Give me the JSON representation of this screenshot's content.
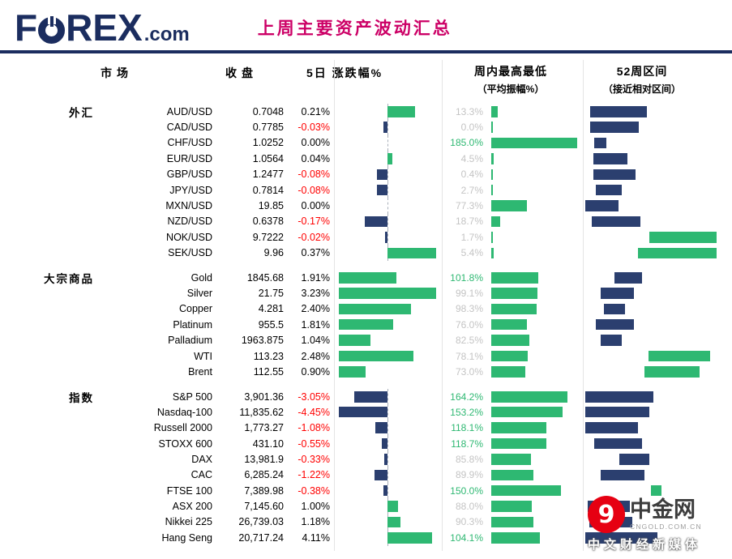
{
  "header": {
    "logo": {
      "f": "F",
      "rex": "REX",
      "com": ".com"
    },
    "title": "上周主要资产波动汇总"
  },
  "columns": {
    "market": "市场",
    "close": "收盘",
    "change": "5日 涨跌幅%",
    "week": "周内最高最低",
    "week_sub": "（平均振幅%）",
    "range52": "52周区间",
    "range52_sub": "（接近相对区间）"
  },
  "colors": {
    "navy": "#2b3f6f",
    "green": "#2eb872",
    "red": "#ff0000",
    "muted_label": "#c4c4c4",
    "title_pink": "#cc0066",
    "logo_navy": "#1b2d5f",
    "watermark_red": "#e60012"
  },
  "chart_data": {
    "type": "table",
    "title": "上周主要资产波动汇总",
    "layout": "data bars: 5-day change (green positive / navy negative, scaled to each group's max), weekly amplitude green bars scaled to axis max, 52-week range bars positioned as fraction of column",
    "week_amplitude_axis_max": 185,
    "groups": [
      {
        "label": "外汇",
        "rows": [
          {
            "market": "AUD/USD",
            "close": "0.7048",
            "change_pct": 0.21,
            "week_amplitude_pct": 13.3,
            "range52_from": 0.04,
            "range52_to": 0.47,
            "range52_color": "navy"
          },
          {
            "market": "CAD/USD",
            "close": "0.7785",
            "change_pct": -0.03,
            "week_amplitude_pct": 0.0,
            "range52_from": 0.04,
            "range52_to": 0.41,
            "range52_color": "navy"
          },
          {
            "market": "CHF/USD",
            "close": "1.0252",
            "change_pct": 0.0,
            "week_amplitude_pct": 185.0,
            "range52_from": 0.07,
            "range52_to": 0.16,
            "range52_color": "navy"
          },
          {
            "market": "EUR/USD",
            "close": "1.0564",
            "change_pct": 0.04,
            "week_amplitude_pct": 4.5,
            "range52_from": 0.06,
            "range52_to": 0.32,
            "range52_color": "navy"
          },
          {
            "market": "GBP/USD",
            "close": "1.2477",
            "change_pct": -0.08,
            "week_amplitude_pct": 0.4,
            "range52_from": 0.06,
            "range52_to": 0.38,
            "range52_color": "navy"
          },
          {
            "market": "JPY/USD",
            "close": "0.7814",
            "change_pct": -0.08,
            "week_amplitude_pct": 2.7,
            "range52_from": 0.08,
            "range52_to": 0.28,
            "range52_color": "navy"
          },
          {
            "market": "MXN/USD",
            "close": "19.85",
            "change_pct": 0.0,
            "week_amplitude_pct": 77.3,
            "range52_from": 0.0,
            "range52_to": 0.25,
            "range52_color": "navy"
          },
          {
            "market": "NZD/USD",
            "close": "0.6378",
            "change_pct": -0.17,
            "week_amplitude_pct": 18.7,
            "range52_from": 0.05,
            "range52_to": 0.42,
            "range52_color": "navy"
          },
          {
            "market": "NOK/USD",
            "close": "9.7222",
            "change_pct": -0.02,
            "week_amplitude_pct": 1.7,
            "range52_from": 0.49,
            "range52_to": 1.0,
            "range52_color": "green"
          },
          {
            "market": "SEK/USD",
            "close": "9.96",
            "change_pct": 0.37,
            "week_amplitude_pct": 5.4,
            "range52_from": 0.4,
            "range52_to": 1.0,
            "range52_color": "green"
          }
        ]
      },
      {
        "label": "大宗商品",
        "rows": [
          {
            "market": "Gold",
            "close": "1845.68",
            "change_pct": 1.91,
            "week_amplitude_pct": 101.8,
            "range52_from": 0.22,
            "range52_to": 0.43,
            "range52_color": "navy"
          },
          {
            "market": "Silver",
            "close": "21.75",
            "change_pct": 3.23,
            "week_amplitude_pct": 99.1,
            "range52_from": 0.12,
            "range52_to": 0.37,
            "range52_color": "navy"
          },
          {
            "market": "Copper",
            "close": "4.281",
            "change_pct": 2.4,
            "week_amplitude_pct": 98.3,
            "range52_from": 0.14,
            "range52_to": 0.3,
            "range52_color": "navy"
          },
          {
            "market": "Platinum",
            "close": "955.5",
            "change_pct": 1.81,
            "week_amplitude_pct": 76.0,
            "range52_from": 0.08,
            "range52_to": 0.37,
            "range52_color": "navy"
          },
          {
            "market": "Palladium",
            "close": "1963.875",
            "change_pct": 1.04,
            "week_amplitude_pct": 82.5,
            "range52_from": 0.12,
            "range52_to": 0.28,
            "range52_color": "navy"
          },
          {
            "market": "WTI",
            "close": "113.23",
            "change_pct": 2.48,
            "week_amplitude_pct": 78.1,
            "range52_from": 0.48,
            "range52_to": 0.95,
            "range52_color": "green"
          },
          {
            "market": "Brent",
            "close": "112.55",
            "change_pct": 0.9,
            "week_amplitude_pct": 73.0,
            "range52_from": 0.45,
            "range52_to": 0.87,
            "range52_color": "green"
          }
        ]
      },
      {
        "label": "指数",
        "rows": [
          {
            "market": "S&P 500",
            "close": "3,901.36",
            "change_pct": -3.05,
            "week_amplitude_pct": 164.2,
            "range52_from": 0.0,
            "range52_to": 0.52,
            "range52_color": "navy"
          },
          {
            "market": "Nasdaq-100",
            "close": "11,835.62",
            "change_pct": -4.45,
            "week_amplitude_pct": 153.2,
            "range52_from": 0.0,
            "range52_to": 0.49,
            "range52_color": "navy"
          },
          {
            "market": "Russell 2000",
            "close": "1,773.27",
            "change_pct": -1.08,
            "week_amplitude_pct": 118.1,
            "range52_from": 0.0,
            "range52_to": 0.4,
            "range52_color": "navy"
          },
          {
            "market": "STOXX 600",
            "close": "431.10",
            "change_pct": -0.55,
            "week_amplitude_pct": 118.7,
            "range52_from": 0.07,
            "range52_to": 0.43,
            "range52_color": "navy"
          },
          {
            "market": "DAX",
            "close": "13,981.9",
            "change_pct": -0.33,
            "week_amplitude_pct": 85.8,
            "range52_from": 0.26,
            "range52_to": 0.49,
            "range52_color": "navy"
          },
          {
            "market": "CAC",
            "close": "6,285.24",
            "change_pct": -1.22,
            "week_amplitude_pct": 89.9,
            "range52_from": 0.12,
            "range52_to": 0.45,
            "range52_color": "navy"
          },
          {
            "market": "FTSE 100",
            "close": "7,389.98",
            "change_pct": -0.38,
            "week_amplitude_pct": 150.0,
            "range52_from": 0.5,
            "range52_to": 0.58,
            "range52_color": "green"
          },
          {
            "market": "ASX 200",
            "close": "7,145.60",
            "change_pct": 1.0,
            "week_amplitude_pct": 88.0,
            "range52_from": 0.02,
            "range52_to": 0.34,
            "range52_color": "navy"
          },
          {
            "market": "Nikkei 225",
            "close": "26,739.03",
            "change_pct": 1.18,
            "week_amplitude_pct": 90.3,
            "range52_from": 0.03,
            "range52_to": 0.36,
            "range52_color": "navy"
          },
          {
            "market": "Hang Seng",
            "close": "20,717.24",
            "change_pct": 4.11,
            "week_amplitude_pct": 104.1,
            "range52_from": 0.0,
            "range52_to": 0.55,
            "range52_color": "navy"
          }
        ]
      }
    ]
  },
  "watermark": {
    "glyph": "9",
    "name": "中金网",
    "url": "CNGOLD.COM.CN",
    "tagline": "中文财经新媒体"
  }
}
